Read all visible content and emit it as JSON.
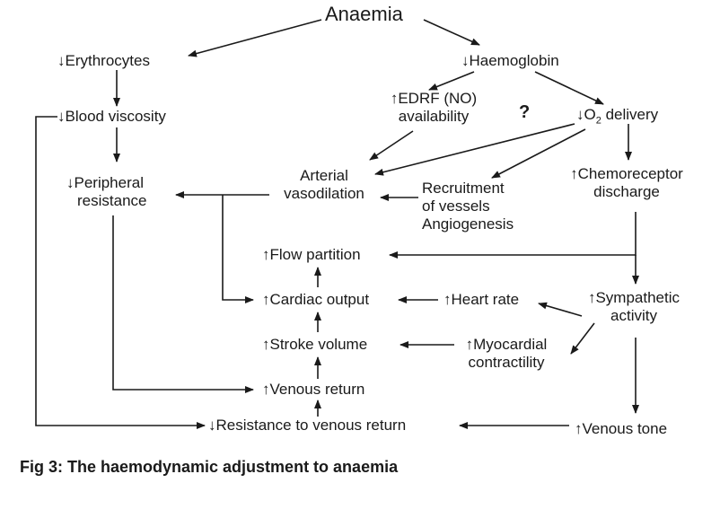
{
  "title": "Anaemia",
  "nodes": {
    "erythrocytes": "↓Erythrocytes",
    "haemoglobin": "↓Haemoglobin",
    "blood_viscosity": "↓Blood viscosity",
    "edrf_line1": "↑EDRF (NO)",
    "edrf_line2": "availability",
    "o2_delivery_prefix": "↓O",
    "o2_delivery_sub": "2",
    "o2_delivery_suffix": " delivery",
    "question_mark": "?",
    "peripheral_line1": "↓Peripheral",
    "peripheral_line2": "resistance",
    "arterial_line1": "Arterial",
    "arterial_line2": "vasodilation",
    "recruitment_line1": "Recruitment",
    "recruitment_line2": "of vessels",
    "recruitment_line3": "Angiogenesis",
    "chemo_line1": "↑Chemoreceptor",
    "chemo_line2": "discharge",
    "flow_partition": "↑Flow partition",
    "cardiac_output": "↑Cardiac output",
    "heart_rate": "↑Heart rate",
    "sympathetic_line1": "↑Sympathetic",
    "sympathetic_line2": "activity",
    "stroke_volume": "↑Stroke volume",
    "myocardial_line1": "↑Myocardial",
    "myocardial_line2": "contractility",
    "venous_return": "↑Venous return",
    "resistance_venous": "↓Resistance to venous return",
    "venous_tone": "↑Venous tone"
  },
  "caption": "Fig 3: The haemodynamic adjustment to anaemia"
}
